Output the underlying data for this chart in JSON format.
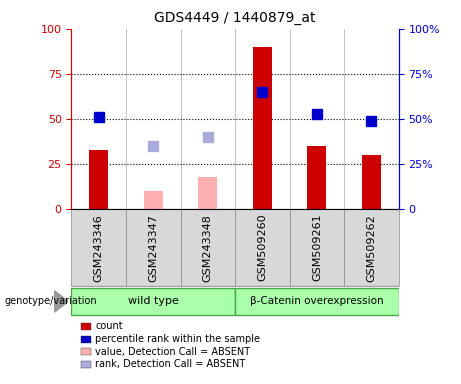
{
  "title": "GDS4449 / 1440879_at",
  "samples": [
    "GSM243346",
    "GSM243347",
    "GSM243348",
    "GSM509260",
    "GSM509261",
    "GSM509262"
  ],
  "red_bars": [
    33,
    null,
    null,
    90,
    35,
    30
  ],
  "pink_bars": [
    null,
    10,
    18,
    null,
    null,
    null
  ],
  "blue_squares": [
    51,
    null,
    null,
    65,
    53,
    49
  ],
  "lavender_squares": [
    null,
    35,
    40,
    null,
    null,
    null
  ],
  "ylim": [
    0,
    100
  ],
  "yticks": [
    0,
    25,
    50,
    75,
    100
  ],
  "red_color": "#cc0000",
  "pink_color": "#ffb0b0",
  "blue_color": "#0000cc",
  "lavender_color": "#aaaadd",
  "green_fill": "#aaffaa",
  "green_edge": "#44aa44",
  "gray_fill": "#d8d8d8",
  "bar_width": 0.35,
  "marker_size": 7,
  "title_fontsize": 10,
  "tick_fontsize": 8,
  "label_fontsize": 7,
  "legend_items": [
    [
      "#cc0000",
      "count"
    ],
    [
      "#0000cc",
      "percentile rank within the sample"
    ],
    [
      "#ffb0b0",
      "value, Detection Call = ABSENT"
    ],
    [
      "#aaaadd",
      "rank, Detection Call = ABSENT"
    ]
  ],
  "wt_label": "wild type",
  "beta_label": "β-Catenin overexpression",
  "genotype_label": "genotype/variation"
}
